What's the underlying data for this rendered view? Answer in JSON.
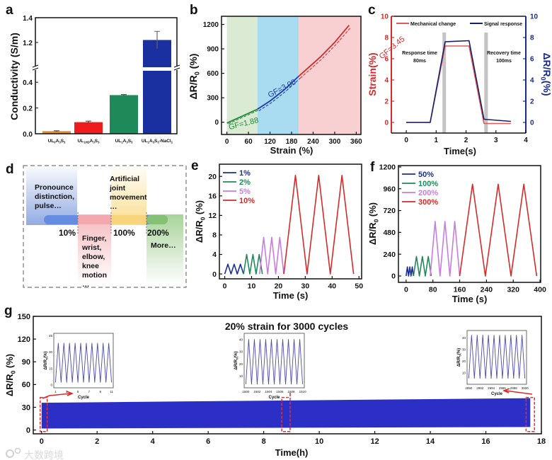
{
  "watermark": "大数跨境",
  "chart_data": [
    {
      "panel": "a",
      "type": "bar",
      "ylabel": "Conductivity  (S/m)",
      "categories": [
        "UL{0}A{3}S{3}",
        "UL{1HD}A{3}S{3}",
        "UL{1}A{3}S{3}",
        "UL{1}A{3}S{3}-NaCl{1}"
      ],
      "values": [
        0.02,
        0.09,
        0.3,
        1.22
      ],
      "errors": [
        0.003,
        0.008,
        0.004,
        0.07
      ],
      "colors": [
        "#e08a2c",
        "#ee1c1c",
        "#1e8a5a",
        "#1a2fa0"
      ],
      "yticks_lower": [
        "0.0",
        "0.2",
        "0.4"
      ],
      "yticks_upper": [
        "1.2",
        "1.4"
      ],
      "ylim_lower": [
        0,
        0.5
      ],
      "ylim_upper": [
        1.0,
        1.4
      ],
      "axis_break": true
    },
    {
      "panel": "b",
      "type": "line",
      "xlabel": "Strain (%)",
      "ylabel": "ΔR/R{0} (%)",
      "xticks": [
        "0",
        "60",
        "120",
        "180",
        "240",
        "300",
        "360"
      ],
      "yticks": [
        "0",
        "300",
        "600",
        "900",
        "1200"
      ],
      "xlim": [
        -15,
        373
      ],
      "ylim": [
        -150,
        1300
      ],
      "regions": [
        {
          "from": 0,
          "to": 85,
          "color": "#dbead2"
        },
        {
          "from": 85,
          "to": 200,
          "color": "#a9dbf1"
        },
        {
          "from": 200,
          "to": 373,
          "color": "#f8d0d1"
        }
      ],
      "series": [
        {
          "name": "GF=1.88",
          "color": "#1f8a3c",
          "x": [
            0,
            40,
            85
          ],
          "y": [
            -10,
            70,
            160
          ],
          "fit_y": [
            -20,
            60,
            150
          ]
        },
        {
          "name": "GF=3.00",
          "color": "#1a3aa8",
          "x": [
            85,
            120,
            160,
            200
          ],
          "y": [
            160,
            260,
            400,
            565
          ],
          "fit_y": [
            140,
            240,
            380,
            540
          ]
        },
        {
          "name": "GF=3.45",
          "color": "#d42a2a",
          "x": [
            200,
            260,
            300,
            340
          ],
          "y": [
            565,
            800,
            980,
            1190
          ],
          "fit_y": [
            540,
            775,
            955,
            1160
          ]
        }
      ]
    },
    {
      "panel": "c",
      "type": "line",
      "xlabel": "Time(s)",
      "ylabel_left": "Strain(%)",
      "ylabel_right": "ΔR/R{0}(%)",
      "xticks": [
        "0",
        "1",
        "2",
        "3",
        "4"
      ],
      "yticks": [
        "0",
        "2",
        "4",
        "6",
        "8",
        "10"
      ],
      "xlim": [
        -0.5,
        4
      ],
      "ylim": [
        -1,
        10
      ],
      "series": [
        {
          "name": "Mechanical change",
          "color": "#e05a5a",
          "x": [
            0,
            0.8,
            1.3,
            2.1,
            2.6,
            3.5
          ],
          "y": [
            0,
            0,
            7.2,
            7.2,
            -0.1,
            -0.1
          ]
        },
        {
          "name": "Signal response",
          "color": "#14206e",
          "x": [
            0,
            0.8,
            1.3,
            2.1,
            2.6,
            3.5
          ],
          "y": [
            0,
            0,
            7.6,
            7.7,
            0.3,
            0.1
          ]
        }
      ],
      "markers": [
        1.27,
        2.67
      ],
      "annotations": [
        {
          "text": "Response time",
          "sub": "80ms"
        },
        {
          "text": "Recovery time",
          "sub": "100ms"
        }
      ]
    },
    {
      "panel": "d",
      "type": "diagram",
      "scale_labels": [
        "10%",
        "100%",
        "200%"
      ],
      "blocks": [
        {
          "lines": [
            "Pronounce",
            "distinction,",
            "pulse…"
          ],
          "color": "#6d8fd8"
        },
        {
          "lines": [
            "Finger,",
            "wrist,",
            "elbow,",
            "knee",
            "motion",
            "…"
          ],
          "color": "#f2a3a8"
        },
        {
          "lines": [
            "Artificial",
            "joint",
            "movement",
            "…"
          ],
          "color": "#f8d36a"
        },
        {
          "lines": [
            "More…"
          ],
          "color": "#8cc47a"
        }
      ]
    },
    {
      "panel": "e",
      "type": "line",
      "xlabel": "Time (s)",
      "ylabel": "ΔR/R{0} (%)",
      "xticks": [
        "0",
        "10",
        "20",
        "30",
        "40",
        "50"
      ],
      "yticks": [
        "0",
        "4",
        "8",
        "12",
        "16",
        "20"
      ],
      "xlim": [
        -2,
        51
      ],
      "ylim": [
        -1,
        22.5
      ],
      "series": [
        {
          "name": "1%",
          "color": "#1a2f95",
          "peak": 2,
          "t_start": 0,
          "t_end": 7,
          "cycles": 3
        },
        {
          "name": "2%",
          "color": "#1e8a5a",
          "peak": 4,
          "t_start": 7,
          "t_end": 14,
          "cycles": 3
        },
        {
          "name": "5%",
          "color": "#c77de0",
          "peak": 7.5,
          "t_start": 13,
          "t_end": 22,
          "cycles": 3
        },
        {
          "name": "10%",
          "color": "#d42a2a",
          "peak": 20.2,
          "t_start": 22,
          "t_end": 48,
          "cycles": 3
        }
      ]
    },
    {
      "panel": "f",
      "type": "line",
      "xlabel": "Time (s)",
      "ylabel": "ΔR/R{0} (%)",
      "xticks": [
        "0",
        "80",
        "160",
        "240",
        "320",
        "400"
      ],
      "yticks": [
        "0",
        "240",
        "480",
        "720",
        "960",
        "1200"
      ],
      "xlim": [
        -23,
        402
      ],
      "ylim": [
        -70,
        1215
      ],
      "series": [
        {
          "name": "50%",
          "color": "#1a2f95",
          "peak": 100,
          "t_start": 0,
          "t_end": 22,
          "cycles": 3
        },
        {
          "name": "100%",
          "color": "#1e8a5a",
          "peak": 215,
          "t_start": 22,
          "t_end": 75,
          "cycles": 3
        },
        {
          "name": "200%",
          "color": "#c77de0",
          "peak": 600,
          "t_start": 72,
          "t_end": 160,
          "cycles": 3
        },
        {
          "name": "300%",
          "color": "#d42a2a",
          "peak": 1010,
          "t_start": 160,
          "t_end": 390,
          "cycles": 3
        }
      ]
    },
    {
      "panel": "g",
      "type": "area",
      "title": "20% strain for 3000 cycles",
      "xlabel": "Time(h)",
      "ylabel": "ΔR/R{0} (%)",
      "xticks": [
        "0",
        "2",
        "4",
        "6",
        "8",
        "10",
        "12",
        "14",
        "16",
        "18"
      ],
      "yticks": [
        "0",
        "30",
        "60",
        "90",
        "120",
        "150"
      ],
      "xlim": [
        -0.3,
        18
      ],
      "ylim": [
        -5,
        150
      ],
      "band": {
        "x": [
          0,
          17.6
        ],
        "lower": [
          2,
          4
        ],
        "upper": [
          36,
          42
        ],
        "color": "#2b2fc6"
      },
      "highlight_windows_h": [
        [
          0,
          0.15
        ],
        [
          8.7,
          8.9
        ],
        [
          17.5,
          17.7
        ]
      ],
      "insets": [
        {
          "xlabel": "Cycle",
          "ylabel": "ΔR/R{0}(%)",
          "xticks": [
            "1",
            "3",
            "5",
            "7",
            "9",
            "11"
          ],
          "yticks": [
            "0",
            "15",
            "30",
            "45"
          ],
          "ylim": [
            -3,
            47
          ],
          "peak": 38,
          "valley": 2
        },
        {
          "xlabel": "Cycle",
          "ylabel": "ΔR/R{0}(%)",
          "xticks": [
            "1500",
            "1502",
            "1504",
            "1506",
            "1508",
            "1510"
          ],
          "yticks": [
            "10",
            "20",
            "30",
            "40"
          ],
          "ylim": [
            0,
            45
          ],
          "peak": 40,
          "valley": 3
        },
        {
          "xlabel": "Cycle",
          "ylabel": "ΔR/R{0}(%)",
          "xticks": [
            "2990",
            "2992",
            "2994",
            "2996",
            "2998",
            "3000"
          ],
          "yticks": [
            "10",
            "20",
            "30",
            "40"
          ],
          "ylim": [
            0,
            46
          ],
          "peak": 42,
          "valley": 5
        }
      ]
    }
  ],
  "panel_labels": [
    "a",
    "b",
    "c",
    "d",
    "e",
    "f",
    "g"
  ]
}
